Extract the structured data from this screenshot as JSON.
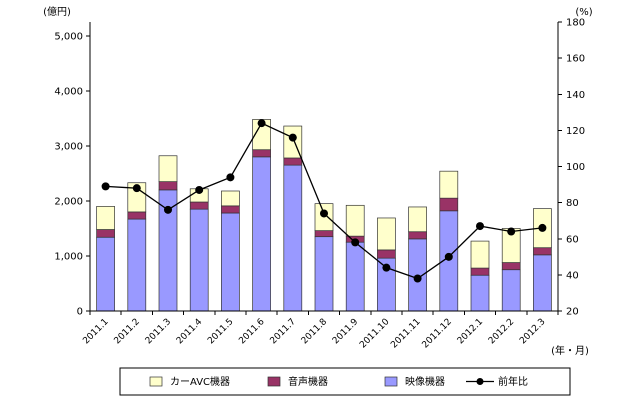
{
  "chart_data": {
    "type": "bar",
    "stacked": true,
    "categories": [
      "2011.1",
      "2011.2",
      "2011.3",
      "2011.4",
      "2011.5",
      "2011.6",
      "2011.7",
      "2011.8",
      "2011.9",
      "2011.10",
      "2011.11",
      "2011.12",
      "2012.1",
      "2012.2",
      "2012.3"
    ],
    "series": [
      {
        "name": "映像機器",
        "type": "bar",
        "axis": "left",
        "color": "#9999FF",
        "values": [
          1340,
          1670,
          2200,
          1850,
          1780,
          2800,
          2650,
          1350,
          1250,
          960,
          1310,
          1820,
          650,
          750,
          1020
        ]
      },
      {
        "name": "音声機器",
        "type": "bar",
        "axis": "left",
        "color": "#993366",
        "values": [
          140,
          130,
          150,
          130,
          130,
          130,
          130,
          110,
          110,
          150,
          130,
          230,
          130,
          130,
          130
        ]
      },
      {
        "name": "カーAVC機器",
        "type": "bar",
        "axis": "left",
        "color": "#FFFFCC",
        "values": [
          420,
          530,
          470,
          240,
          270,
          550,
          580,
          490,
          560,
          580,
          450,
          490,
          490,
          620,
          710
        ]
      },
      {
        "name": "前年比",
        "type": "line",
        "axis": "right",
        "color": "#000000",
        "values": [
          89,
          88,
          76,
          87,
          94,
          124,
          116,
          74,
          58,
          44,
          38,
          50,
          67,
          64,
          66
        ]
      }
    ],
    "ylabel": "(億円)",
    "y2label": "(%)",
    "xlabel": "(年・月)",
    "ylim": [
      0,
      5250
    ],
    "y2lim": [
      20,
      180
    ],
    "ytick_labels": [
      "0",
      "1,000",
      "2,000",
      "3,000",
      "4,000",
      "5,000"
    ],
    "y2tick_labels": [
      "20",
      "40",
      "60",
      "80",
      "100",
      "120",
      "140",
      "160",
      "180"
    ],
    "grid": false,
    "legend": "bottom"
  }
}
